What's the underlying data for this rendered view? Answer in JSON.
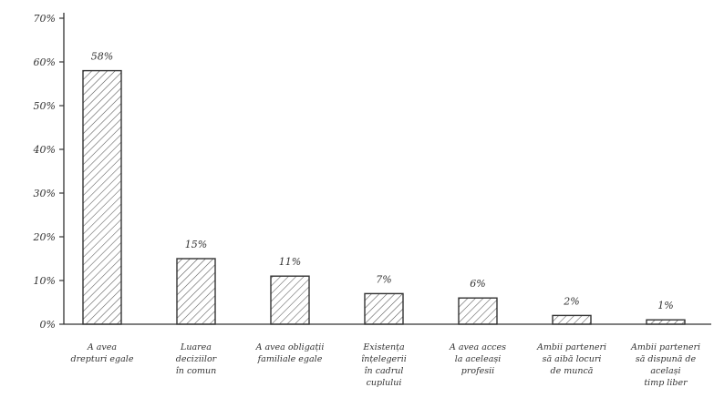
{
  "chart_data": {
    "type": "bar",
    "title": "",
    "xlabel": "",
    "ylabel": "",
    "ylim": [
      0,
      70
    ],
    "yticks": [
      0,
      10,
      20,
      30,
      40,
      50,
      60,
      70
    ],
    "ytick_labels": [
      "0%",
      "10%",
      "20%",
      "30%",
      "40%",
      "50%",
      "60%",
      "70%"
    ],
    "grid": false,
    "legend": "none",
    "categories": [
      [
        "A avea",
        "drepturi egale"
      ],
      [
        "Luarea",
        "deciziilor",
        "în comun"
      ],
      [
        "A avea obligații",
        "familiale egale"
      ],
      [
        "Existența",
        "înțelegerii",
        "în cadrul",
        "cuplului"
      ],
      [
        "A avea acces",
        "la aceleași",
        "profesii"
      ],
      [
        "Ambii parteneri",
        "să aibă locuri",
        "de muncă"
      ],
      [
        "Ambii parteneri",
        "să dispună de",
        "același",
        "timp liber"
      ]
    ],
    "values": [
      58,
      15,
      11,
      7,
      6,
      2,
      1
    ],
    "data_labels": [
      "58%",
      "15%",
      "11%",
      "7%",
      "6%",
      "2%",
      "1%"
    ],
    "colors": {
      "bar_fill": "#ffffff",
      "bar_hatch": "#555555",
      "axis": "#333333",
      "text": "#333333"
    }
  }
}
